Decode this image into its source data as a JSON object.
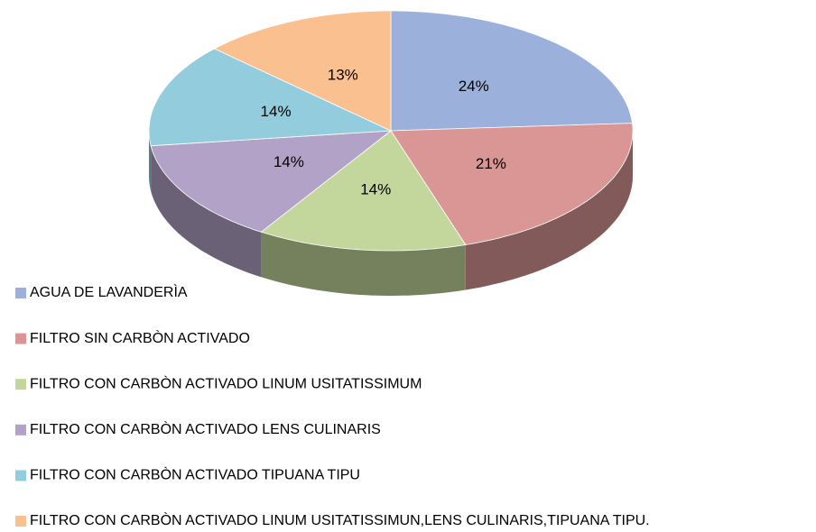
{
  "chart_data": {
    "type": "pie3d",
    "categories": [
      "AGUA DE LAVANDERÌA",
      "FILTRO  SIN CARBÒN ACTIVADO",
      "FILTRO CON CARBÒN ACTIVADO LINUM USITATISSIMUM",
      "FILTRO CON CARBÒN ACTIVADO LENS CULINARIS",
      "FILTRO CON CARBÒN ACTIVADO TIPUANA TIPU",
      "FILTRO CON CARBÒN ACTIVADO LINUM USITATISSIMUN,LENS CULINARIS,TIPUANA TIPU."
    ],
    "values": [
      24,
      21,
      14,
      14,
      14,
      13
    ],
    "value_labels": [
      "24%",
      "21%",
      "14%",
      "14%",
      "14%",
      "13%"
    ],
    "colors": [
      "#9bb1dc",
      "#d99694",
      "#c3d69b",
      "#b3a2c7",
      "#93cddd",
      "#fac090"
    ],
    "legend": "bottom-left"
  }
}
